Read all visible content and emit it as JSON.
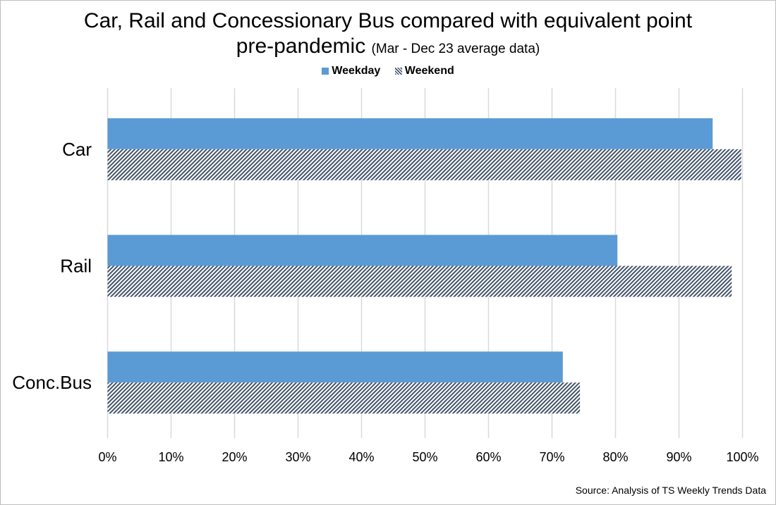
{
  "chart_data": {
    "type": "bar",
    "orientation": "horizontal",
    "title": "Car, Rail and Concessionary Bus compared with equivalent point pre-pandemic",
    "subtitle": "(Mar - Dec 23 average data)",
    "categories": [
      "Car",
      "Rail",
      "Conc.Bus"
    ],
    "series": [
      {
        "name": "Weekday",
        "values": [
          95.3,
          80.3,
          71.7
        ],
        "color": "#5b9bd5",
        "pattern": "solid"
      },
      {
        "name": "Weekend",
        "values": [
          99.8,
          98.3,
          74.4
        ],
        "color": "#44546a",
        "pattern": "diagonal-hatch"
      }
    ],
    "xlim": [
      0,
      100
    ],
    "x_ticks": [
      "0%",
      "10%",
      "20%",
      "30%",
      "40%",
      "50%",
      "60%",
      "70%",
      "80%",
      "90%",
      "100%"
    ],
    "grid": "vertical",
    "legend": "top",
    "source": "Source:  Analysis  of  TS Weekly Trends Data"
  }
}
